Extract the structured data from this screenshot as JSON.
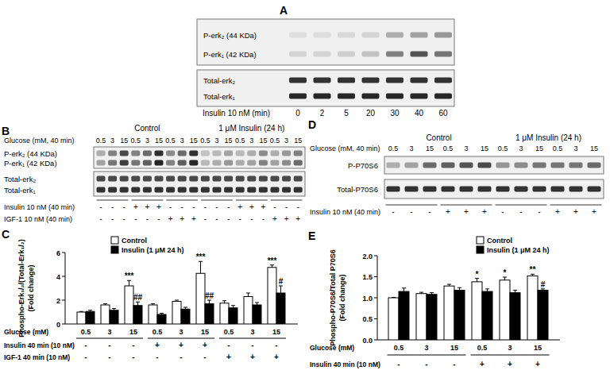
{
  "blots": [
    {
      "panel": "A",
      "membranes": [
        {
          "rows": [
            {
              "label": "P-erk₂ (44 KDa)",
              "intensity": [
                0.08,
                0.08,
                0.1,
                0.12,
                0.3,
                0.35,
                0.4
              ]
            },
            {
              "label": "P-erk₁ (42 KDa)",
              "intensity": [
                0.12,
                0.12,
                0.15,
                0.2,
                0.5,
                0.7,
                0.55
              ]
            }
          ]
        },
        {
          "rows": [
            {
              "label": "Total-erk₂",
              "intensity": [
                0.85,
                0.85,
                0.85,
                0.85,
                0.85,
                0.85,
                0.85
              ]
            },
            {
              "label": "Total-erk₁",
              "intensity": [
                0.9,
                0.9,
                0.9,
                0.9,
                0.9,
                0.9,
                0.9
              ]
            }
          ]
        }
      ],
      "lane_rows": [
        {
          "label": "Insulin 10 nM (min)",
          "values": [
            0,
            2,
            5,
            20,
            30,
            40,
            60
          ]
        }
      ]
    },
    {
      "panel": "B",
      "headers": [
        "Control",
        "1 μM Insulin (24 h)"
      ],
      "membranes": [
        {
          "rows": [
            {
              "label": "P-erk₂ (44 KDa)",
              "intensity": [
                0.3,
                0.5,
                0.75,
                0.5,
                0.6,
                0.85,
                0.45,
                0.6,
                0.85,
                0.2,
                0.25,
                0.35,
                0.25,
                0.3,
                0.45,
                0.3,
                0.4,
                0.5
              ]
            },
            {
              "label": "P-erk₁ (42 KDa)",
              "intensity": [
                0.35,
                0.55,
                0.8,
                0.55,
                0.65,
                0.9,
                0.5,
                0.65,
                0.9,
                0.25,
                0.3,
                0.4,
                0.3,
                0.35,
                0.5,
                0.35,
                0.45,
                0.6
              ]
            }
          ]
        },
        {
          "rows": [
            {
              "label": "Total-erk₂",
              "intensity": [
                0.75,
                0.75,
                0.75,
                0.75,
                0.75,
                0.75,
                0.75,
                0.75,
                0.75,
                0.75,
                0.75,
                0.75,
                0.75,
                0.75,
                0.75,
                0.75,
                0.75,
                0.75
              ]
            },
            {
              "label": "Total-erk₁",
              "intensity": [
                0.85,
                0.85,
                0.85,
                0.85,
                0.85,
                0.85,
                0.85,
                0.85,
                0.85,
                0.85,
                0.85,
                0.85,
                0.85,
                0.85,
                0.85,
                0.85,
                0.85,
                0.85
              ]
            }
          ]
        }
      ],
      "lane_rows": [
        {
          "label": "Glucose (mM, 40 min)",
          "values": [
            0.5,
            3,
            15,
            0.5,
            3,
            15,
            0.5,
            3,
            15,
            0.5,
            3,
            15,
            0.5,
            3,
            15,
            0.5,
            3,
            15
          ]
        }
      ],
      "treatment_rows": [
        {
          "label": "Insulin 10 nM (40 min)",
          "values": [
            "-",
            "-",
            "-",
            "+",
            "+",
            "+",
            "-",
            "-",
            "-",
            "-",
            "-",
            "-",
            "+",
            "+",
            "+",
            "-",
            "-",
            "-"
          ]
        },
        {
          "label": "IGF-1 10 nM (40 min)",
          "values": [
            "-",
            "-",
            "-",
            "-",
            "-",
            "-",
            "+",
            "+",
            "+",
            "-",
            "-",
            "-",
            "-",
            "-",
            "-",
            "+",
            "+",
            "+"
          ]
        }
      ]
    },
    {
      "panel": "D",
      "headers": [
        "Control",
        "1 μM Insulin (24 h)"
      ],
      "membranes": [
        {
          "rows": [
            {
              "label": "P-P70S6",
              "intensity": [
                0.3,
                0.35,
                0.6,
                0.65,
                0.7,
                0.75,
                0.4,
                0.45,
                0.55,
                0.55,
                0.55,
                0.6
              ]
            }
          ]
        },
        {
          "rows": [
            {
              "label": "Total-P70S6",
              "intensity": [
                0.85,
                0.85,
                0.85,
                0.85,
                0.85,
                0.85,
                0.85,
                0.85,
                0.85,
                0.85,
                0.85,
                0.85
              ]
            }
          ]
        }
      ],
      "lane_rows": [
        {
          "label": "Glucose (mM, 40 min)",
          "values": [
            0.5,
            3,
            15,
            0.5,
            3,
            15,
            0.5,
            3,
            15,
            0.5,
            3,
            15
          ]
        }
      ],
      "treatment_rows": [
        {
          "label": "Insulin 10 nM (40 min)",
          "values": [
            "-",
            "-",
            "-",
            "+",
            "+",
            "+",
            "-",
            "-",
            "-",
            "+",
            "+",
            "+"
          ]
        }
      ]
    }
  ],
  "chart_data": [
    {
      "panel": "C",
      "type": "bar",
      "y_label": [
        "Phospho-Erk₁/₂/(Total-Erk₁/₂)",
        "(Fold change)"
      ],
      "x_label": "Glucose (mM)",
      "categories": [
        "0.5",
        "3",
        "15",
        "0.5",
        "3",
        "15",
        "0.5",
        "3",
        "15"
      ],
      "x_rows": [
        {
          "label": "Insulin 40 min (10 nM)",
          "values": [
            "-",
            "-",
            "-",
            "+",
            "+",
            "+",
            "-",
            "-",
            "-"
          ]
        },
        {
          "label": "IGF-1 40 min (10 nM)",
          "values": [
            "-",
            "-",
            "-",
            "-",
            "-",
            "-",
            "+",
            "+",
            "+"
          ]
        }
      ],
      "series": [
        {
          "name": "Control",
          "color": "#ffffff",
          "values": [
            1.0,
            1.6,
            3.2,
            1.6,
            1.9,
            4.25,
            1.75,
            2.3,
            4.75
          ],
          "errors": [
            0.05,
            0.1,
            0.45,
            0.1,
            0.1,
            1.0,
            0.2,
            0.3,
            0.2
          ],
          "significance": [
            null,
            null,
            "***",
            null,
            null,
            "***",
            null,
            null,
            "***"
          ]
        },
        {
          "name": "Insulin (1 μM 24 h)",
          "color": "#000000",
          "values": [
            1.05,
            1.15,
            1.55,
            0.8,
            1.25,
            1.7,
            1.35,
            1.6,
            2.6
          ],
          "errors": [
            0.1,
            0.15,
            0.3,
            0.1,
            0.15,
            0.3,
            0.2,
            0.2,
            0.6
          ],
          "significance": [
            null,
            null,
            "##",
            null,
            null,
            "##",
            null,
            null,
            "#"
          ]
        }
      ],
      "ylim": [
        0,
        6
      ],
      "yticks": [
        0,
        2,
        4,
        6
      ],
      "grid": false,
      "legend": "top-left"
    },
    {
      "panel": "E",
      "type": "bar",
      "y_label": [
        "Phospho-P70S6/Total P70S6",
        "(Fold change)"
      ],
      "x_label": "Glucose (mM)",
      "categories": [
        "0.5",
        "3",
        "15",
        "0.5",
        "3",
        "15"
      ],
      "x_rows": [
        {
          "label": "Insulin 40 min (10 nM)",
          "values": [
            "-",
            "-",
            "-",
            "+",
            "+",
            "+"
          ]
        }
      ],
      "series": [
        {
          "name": "Control",
          "color": "#ffffff",
          "values": [
            1.0,
            1.1,
            1.28,
            1.38,
            1.42,
            1.52
          ],
          "errors": [
            0.01,
            0.03,
            0.04,
            0.08,
            0.07,
            0.04
          ],
          "significance": [
            null,
            null,
            null,
            "*",
            "*",
            "**"
          ]
        },
        {
          "name": "Insulin (1 μM 24 h)",
          "color": "#000000",
          "values": [
            1.15,
            1.08,
            1.18,
            1.15,
            1.12,
            1.18
          ],
          "errors": [
            0.08,
            0.04,
            0.06,
            0.06,
            0.06,
            0.03
          ],
          "significance": [
            null,
            null,
            null,
            null,
            null,
            "#"
          ]
        }
      ],
      "ylim": [
        0,
        2
      ],
      "yticks": [
        {
          "value": 0,
          "label": "0.0"
        },
        {
          "value": 0.5,
          "label": "0.5"
        },
        {
          "value": 1,
          "label": "1.0"
        },
        {
          "value": 1.5,
          "label": "1.5"
        },
        {
          "value": 2,
          "label": "2.0"
        }
      ],
      "grid": false,
      "legend": "top-right"
    }
  ]
}
